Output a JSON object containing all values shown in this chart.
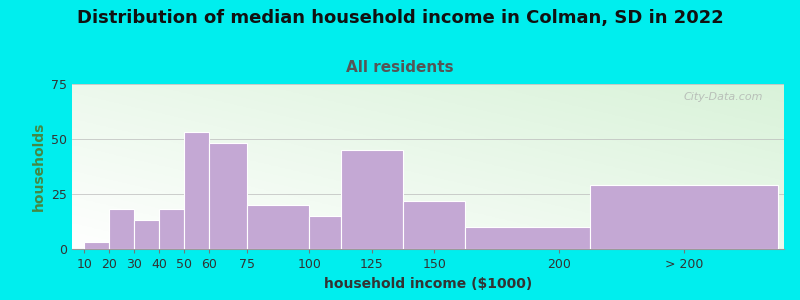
{
  "title": "Distribution of median household income in Colman, SD in 2022",
  "subtitle": "All residents",
  "xlabel": "household income ($1000)",
  "ylabel": "households",
  "background_outer": "#00EEEE",
  "bar_color": "#C4A8D4",
  "bar_edge_color": "#FFFFFF",
  "grid_color": "#BBBBBB",
  "values": [
    3,
    18,
    13,
    18,
    53,
    48,
    20,
    15,
    45,
    22,
    10,
    29
  ],
  "bar_lefts": [
    10,
    20,
    30,
    40,
    50,
    60,
    75,
    100,
    112.5,
    137.5,
    162.5,
    212.5
  ],
  "bar_widths": [
    10,
    10,
    10,
    10,
    10,
    15,
    25,
    12.5,
    25,
    25,
    50,
    75
  ],
  "ylim": [
    0,
    75
  ],
  "yticks": [
    0,
    25,
    50,
    75
  ],
  "xtick_labels": [
    "10",
    "20",
    "30",
    "40",
    "50",
    "60",
    "75",
    "100",
    "125",
    "150",
    "200",
    "> 200"
  ],
  "xtick_positions": [
    10,
    20,
    30,
    40,
    50,
    60,
    75,
    100,
    125,
    150,
    200,
    250
  ],
  "title_fontsize": 13,
  "subtitle_fontsize": 11,
  "axis_label_fontsize": 10,
  "watermark_text": "City-Data.com"
}
